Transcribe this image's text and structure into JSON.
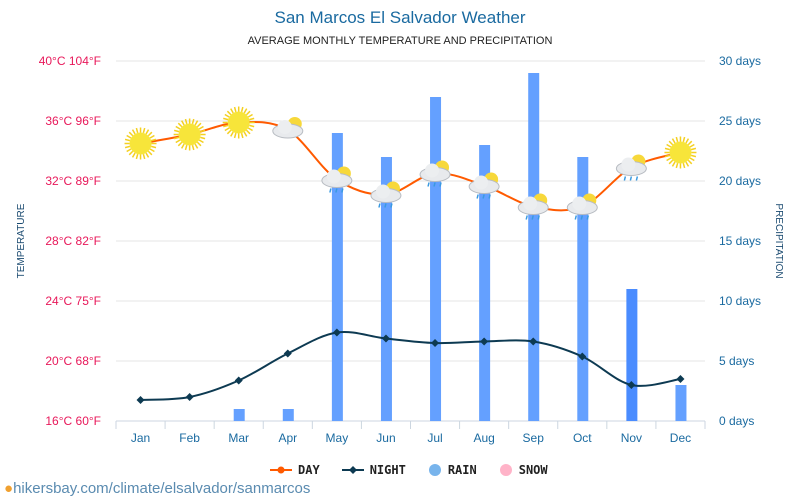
{
  "chart_data": {
    "type": "bar+line",
    "title": "San Marcos El Salvador Weather",
    "subtitle": "AVERAGE MONTHLY TEMPERATURE AND PRECIPITATION",
    "ylabel_left": "TEMPERATURE",
    "ylabel_right": "PRECIPITATION",
    "categories": [
      "Jan",
      "Feb",
      "Mar",
      "Apr",
      "May",
      "Jun",
      "Jul",
      "Aug",
      "Sep",
      "Oct",
      "Nov",
      "Dec"
    ],
    "left_ticks": [
      "16°C 60°F",
      "20°C 68°F",
      "24°C 75°F",
      "28°C 82°F",
      "32°C 89°F",
      "36°C 96°F",
      "40°C 104°F"
    ],
    "right_ticks": [
      "0 days",
      "5 days",
      "10 days",
      "15 days",
      "20 days",
      "25 days",
      "30 days"
    ],
    "ylim_temp": [
      16,
      40
    ],
    "ylim_precip": [
      0,
      30
    ],
    "series": [
      {
        "name": "DAY",
        "unit": "°C",
        "color": "#ff5a00",
        "values": [
          34.5,
          35.1,
          35.9,
          35.4,
          32.1,
          31.1,
          32.5,
          31.7,
          30.3,
          30.3,
          32.9,
          33.9
        ]
      },
      {
        "name": "NIGHT",
        "unit": "°C",
        "color": "#0d3a52",
        "values": [
          17.4,
          17.6,
          18.7,
          20.5,
          21.9,
          21.5,
          21.2,
          21.3,
          21.3,
          20.3,
          18.4,
          18.8
        ]
      },
      {
        "name": "RAIN",
        "unit": "days",
        "color": "#64a0ff",
        "values": [
          0,
          0,
          1,
          1,
          24,
          22,
          27,
          23,
          29,
          22,
          11,
          3
        ]
      },
      {
        "name": "SNOW",
        "unit": "days",
        "color": "#ffb3c8",
        "values": [
          0,
          0,
          0,
          0,
          0,
          0,
          0,
          0,
          0,
          0,
          0,
          0
        ]
      }
    ],
    "weather_icons": [
      "sun",
      "sun",
      "sun",
      "partly-cloudy",
      "rain-sun",
      "rain-sun",
      "rain-sun",
      "rain-sun",
      "rain-sun",
      "rain-sun",
      "rain-sun",
      "sun"
    ]
  },
  "legend": [
    "DAY",
    "NIGHT",
    "RAIN",
    "SNOW"
  ],
  "source": "hikersbay.com/climate/elsalvador/sanmarcos"
}
